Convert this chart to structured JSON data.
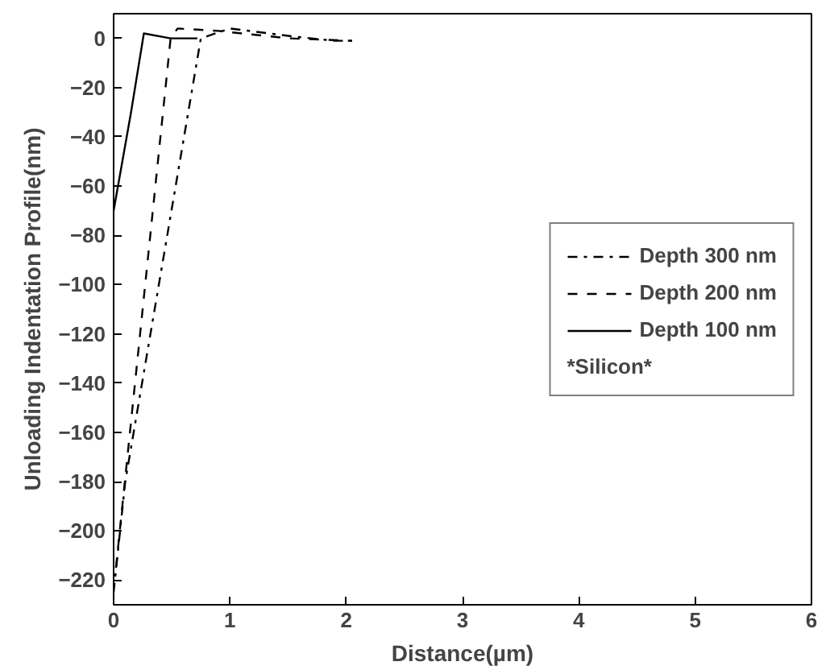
{
  "chart_data": {
    "type": "line",
    "xlabel": "Distance(µm)",
    "ylabel": "Unloading Indentation Profile(nm)",
    "xlim": [
      0,
      6
    ],
    "ylim": [
      -230,
      10
    ],
    "xticks": [
      0,
      1,
      2,
      3,
      4,
      5,
      6
    ],
    "yticks": [
      0,
      -20,
      -40,
      -60,
      -80,
      -100,
      -120,
      -140,
      -160,
      -180,
      -200,
      -220
    ],
    "grid": false,
    "legend": "right",
    "legend_title": "*Silicon*",
    "series": [
      {
        "name": "Depth 300 nm",
        "color": "#000000",
        "line_style": "dashdot",
        "x": [
          0,
          0.1,
          0.75,
          1.0,
          1.5,
          1.9,
          2.05
        ],
        "values": [
          -225,
          -180,
          0,
          4,
          1,
          -1,
          -1
        ]
      },
      {
        "name": "Depth 200 nm",
        "color": "#000000",
        "line_style": "dashed",
        "x": [
          0.02,
          0.49,
          0.55,
          0.9,
          1.5,
          2.05
        ],
        "values": [
          -215,
          0,
          4,
          3,
          0,
          -1
        ]
      },
      {
        "name": "Depth 100 nm",
        "color": "#000000",
        "line_style": "solid",
        "x": [
          0,
          0.15,
          0.26,
          0.49,
          0.72
        ],
        "values": [
          -70,
          -30,
          2,
          0,
          0
        ]
      }
    ]
  }
}
